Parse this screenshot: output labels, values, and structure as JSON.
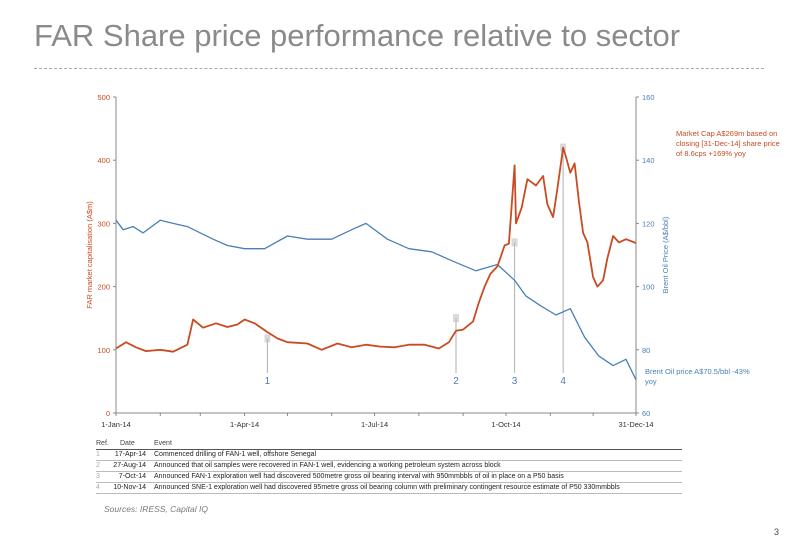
{
  "title": "FAR Share price performance relative to sector",
  "annotations": {
    "market_cap_note": "Market Cap A$269m based on closing [31-Dec-14] share price of 8.6cps +169% yoy",
    "brent_note": "Brent Oil price A$70.5/bbl -43% yoy"
  },
  "events_table": {
    "headers": {
      "ref": "Ref.",
      "date": "Date",
      "event": "Event"
    },
    "rows": [
      {
        "ref": "1",
        "date": "17-Apr-14",
        "event": "Commenced drilling of FAN-1 well, offshore Senegal"
      },
      {
        "ref": "2",
        "date": "27-Aug-14",
        "event": "Announced that oil samples were recovered in FAN-1 well, evidencing a working petroleum system across block"
      },
      {
        "ref": "3",
        "date": "7-Oct-14",
        "event": "Announced FAN-1 exploration well had discovered 500metre gross oil bearing interval with 950mmbbls of oil in place on a P50 basis"
      },
      {
        "ref": "4",
        "date": "10-Nov-14",
        "event": "Announced SNE-1 exploration well had discovered 95metre gross oil bearing column with preliminary contingent resource estimate of P50 330mmbbls"
      }
    ]
  },
  "sources": "Sources: IRESS, Capital IQ",
  "page_number": "3",
  "colors": {
    "market_cap": "#c84b22",
    "brent": "#4a7fb8",
    "axis": "#888888",
    "marker": "#bbbbbb"
  },
  "chart_data": {
    "type": "line",
    "xlabel": "",
    "x_tick_labels": [
      "1-Jan-14",
      "1-Apr-14",
      "1-Jul-14",
      "1-Oct-14",
      "31-Dec-14"
    ],
    "x_tick_dates": [
      "2014-01-01",
      "2014-04-01",
      "2014-07-01",
      "2014-10-01",
      "2014-12-31"
    ],
    "x_range": [
      "2014-01-01",
      "2014-12-31"
    ],
    "y_left": {
      "label": "FAR market capitalisation (A$m)",
      "range": [
        0,
        500
      ],
      "ticks": [
        0,
        100,
        200,
        300,
        400,
        500
      ]
    },
    "y_right": {
      "label": "Brent Oil Price (A$/bbl)",
      "range": [
        60,
        160
      ],
      "ticks": [
        60,
        80,
        100,
        120,
        140,
        160
      ]
    },
    "grid": false,
    "legend": "none",
    "series": [
      {
        "axis": "left",
        "points": [
          [
            "2014-01-01",
            102
          ],
          [
            "2014-01-08",
            112
          ],
          [
            "2014-01-15",
            104
          ],
          [
            "2014-01-22",
            98
          ],
          [
            "2014-02-01",
            100
          ],
          [
            "2014-02-10",
            97
          ],
          [
            "2014-02-20",
            108
          ],
          [
            "2014-02-24",
            148
          ],
          [
            "2014-03-03",
            135
          ],
          [
            "2014-03-12",
            142
          ],
          [
            "2014-03-20",
            136
          ],
          [
            "2014-03-27",
            140
          ],
          [
            "2014-04-01",
            148
          ],
          [
            "2014-04-08",
            142
          ],
          [
            "2014-04-17",
            128
          ],
          [
            "2014-04-24",
            118
          ],
          [
            "2014-05-01",
            112
          ],
          [
            "2014-05-15",
            110
          ],
          [
            "2014-05-25",
            100
          ],
          [
            "2014-06-05",
            110
          ],
          [
            "2014-06-15",
            104
          ],
          [
            "2014-06-25",
            108
          ],
          [
            "2014-07-05",
            105
          ],
          [
            "2014-07-15",
            104
          ],
          [
            "2014-07-25",
            108
          ],
          [
            "2014-08-05",
            108
          ],
          [
            "2014-08-15",
            102
          ],
          [
            "2014-08-22",
            112
          ],
          [
            "2014-08-27",
            130
          ],
          [
            "2014-09-01",
            132
          ],
          [
            "2014-09-08",
            145
          ],
          [
            "2014-09-12",
            175
          ],
          [
            "2014-09-16",
            200
          ],
          [
            "2014-09-20",
            220
          ],
          [
            "2014-09-25",
            232
          ],
          [
            "2014-09-30",
            265
          ],
          [
            "2014-10-03",
            268
          ],
          [
            "2014-10-07",
            392
          ],
          [
            "2014-10-08",
            300
          ],
          [
            "2014-10-12",
            325
          ],
          [
            "2014-10-16",
            370
          ],
          [
            "2014-10-22",
            360
          ],
          [
            "2014-10-27",
            375
          ],
          [
            "2014-10-30",
            330
          ],
          [
            "2014-11-03",
            310
          ],
          [
            "2014-11-06",
            355
          ],
          [
            "2014-11-10",
            420
          ],
          [
            "2014-11-12",
            405
          ],
          [
            "2014-11-15",
            380
          ],
          [
            "2014-11-18",
            395
          ],
          [
            "2014-11-21",
            335
          ],
          [
            "2014-11-24",
            285
          ],
          [
            "2014-11-27",
            270
          ],
          [
            "2014-12-01",
            215
          ],
          [
            "2014-12-04",
            200
          ],
          [
            "2014-12-08",
            210
          ],
          [
            "2014-12-11",
            245
          ],
          [
            "2014-12-15",
            280
          ],
          [
            "2014-12-19",
            270
          ],
          [
            "2014-12-24",
            275
          ],
          [
            "2014-12-31",
            269
          ]
        ]
      },
      {
        "axis": "right",
        "points": [
          [
            "2014-01-01",
            121
          ],
          [
            "2014-01-06",
            118
          ],
          [
            "2014-01-13",
            119
          ],
          [
            "2014-01-20",
            117
          ],
          [
            "2014-02-01",
            121
          ],
          [
            "2014-02-10",
            120
          ],
          [
            "2014-02-20",
            119
          ],
          [
            "2014-03-01",
            117
          ],
          [
            "2014-03-10",
            115
          ],
          [
            "2014-03-20",
            113
          ],
          [
            "2014-04-01",
            112
          ],
          [
            "2014-04-15",
            112
          ],
          [
            "2014-05-01",
            116
          ],
          [
            "2014-05-15",
            115
          ],
          [
            "2014-06-01",
            115
          ],
          [
            "2014-06-15",
            118
          ],
          [
            "2014-06-25",
            120
          ],
          [
            "2014-07-10",
            115
          ],
          [
            "2014-07-25",
            112
          ],
          [
            "2014-08-10",
            111
          ],
          [
            "2014-08-25",
            108
          ],
          [
            "2014-09-10",
            105
          ],
          [
            "2014-09-25",
            107
          ],
          [
            "2014-10-07",
            102
          ],
          [
            "2014-10-15",
            97
          ],
          [
            "2014-10-25",
            94
          ],
          [
            "2014-11-05",
            91
          ],
          [
            "2014-11-15",
            93
          ],
          [
            "2014-11-25",
            84
          ],
          [
            "2014-12-05",
            78
          ],
          [
            "2014-12-15",
            75
          ],
          [
            "2014-12-24",
            77
          ],
          [
            "2014-12-31",
            70.5
          ]
        ]
      }
    ],
    "event_markers": [
      {
        "label": "1",
        "date": "2014-04-17",
        "value": 118
      },
      {
        "label": "2",
        "date": "2014-08-27",
        "value": 150
      },
      {
        "label": "3",
        "date": "2014-10-07",
        "value": 270
      },
      {
        "label": "4",
        "date": "2014-11-10",
        "value": 420
      }
    ]
  }
}
